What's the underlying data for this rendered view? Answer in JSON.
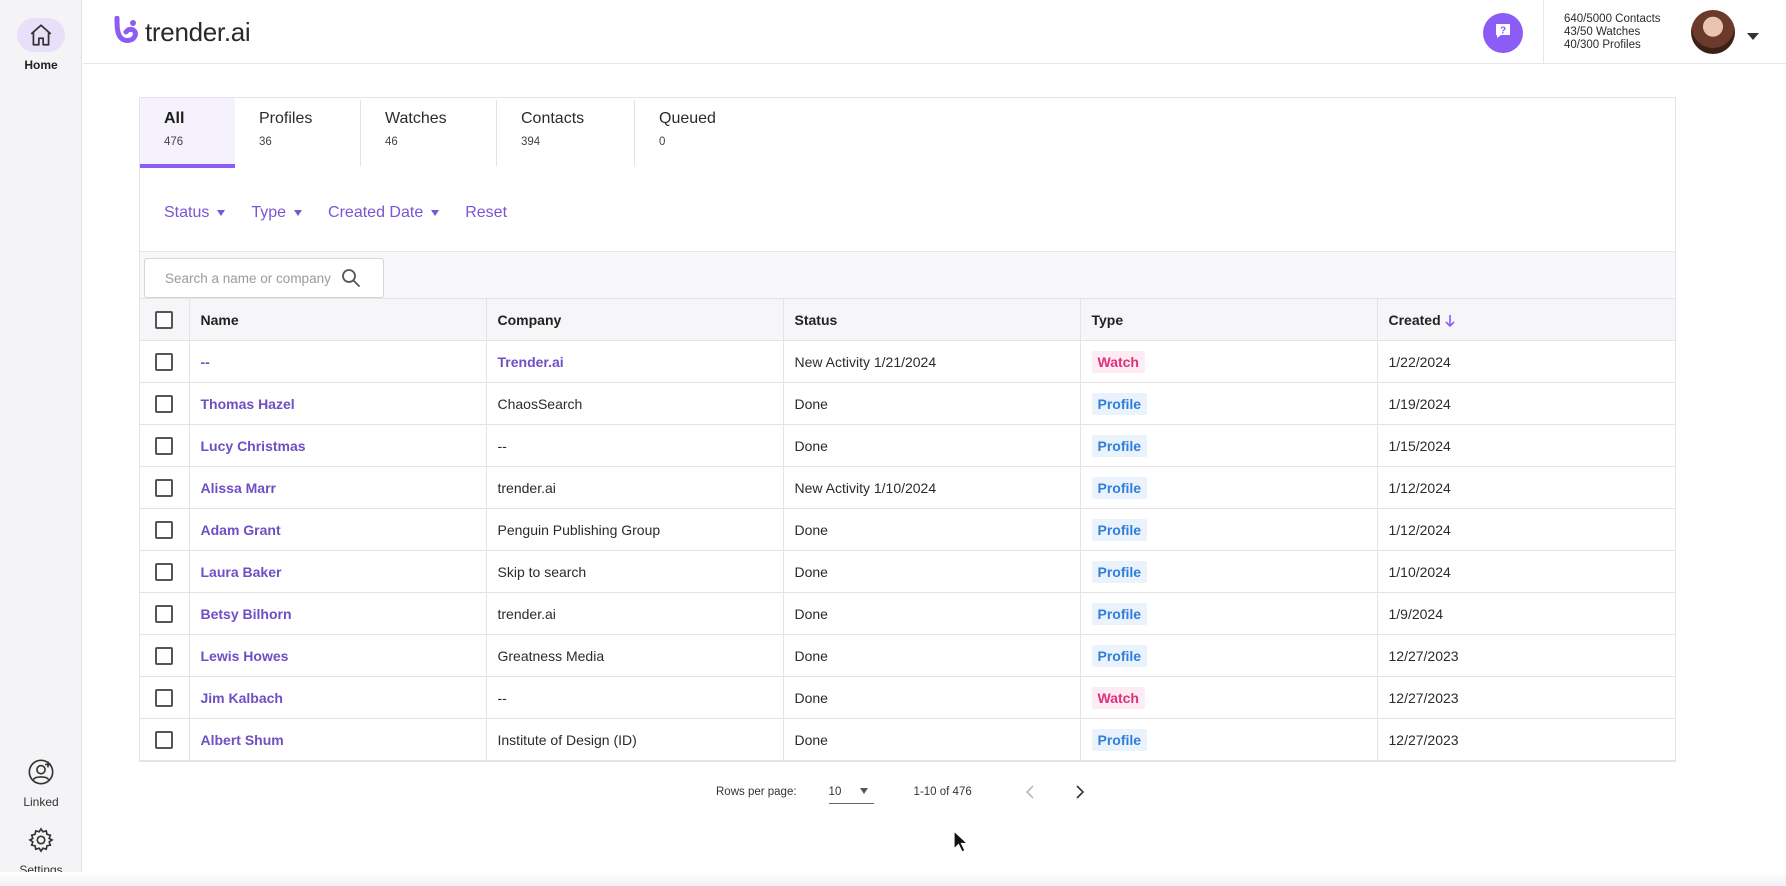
{
  "sidebar": {
    "home_label": "Home",
    "linked_label": "Linked",
    "settings_label": "Settings"
  },
  "header": {
    "logo_text": "trender.ai",
    "quota": {
      "contacts": "640/5000 Contacts",
      "watches": "43/50 Watches",
      "profiles": "40/300 Profiles"
    }
  },
  "tabs": [
    {
      "label": "All",
      "count": "476"
    },
    {
      "label": "Profiles",
      "count": "36"
    },
    {
      "label": "Watches",
      "count": "46"
    },
    {
      "label": "Contacts",
      "count": "394"
    },
    {
      "label": "Queued",
      "count": "0"
    }
  ],
  "filters": {
    "status": "Status",
    "type": "Type",
    "created_date": "Created Date",
    "reset": "Reset"
  },
  "search": {
    "placeholder": "Search a name or company",
    "value": ""
  },
  "table": {
    "headers": {
      "name": "Name",
      "company": "Company",
      "status": "Status",
      "type": "Type",
      "created": "Created"
    },
    "rows": [
      {
        "name": "--",
        "company": "Trender.ai",
        "status": "New Activity 1/21/2024",
        "type": "Watch",
        "created": "1/22/2024"
      },
      {
        "name": "Thomas Hazel",
        "company": "ChaosSearch",
        "status": "Done",
        "type": "Profile",
        "created": "1/19/2024"
      },
      {
        "name": "Lucy Christmas",
        "company": "--",
        "status": "Done",
        "type": "Profile",
        "created": "1/15/2024"
      },
      {
        "name": "Alissa Marr",
        "company": "trender.ai",
        "status": "New Activity 1/10/2024",
        "type": "Profile",
        "created": "1/12/2024"
      },
      {
        "name": "Adam Grant",
        "company": "Penguin Publishing Group",
        "status": "Done",
        "type": "Profile",
        "created": "1/12/2024"
      },
      {
        "name": "Laura Baker",
        "company": "Skip to search",
        "status": "Done",
        "type": "Profile",
        "created": "1/10/2024"
      },
      {
        "name": "Betsy Bilhorn",
        "company": "trender.ai",
        "status": "Done",
        "type": "Profile",
        "created": "1/9/2024"
      },
      {
        "name": "Lewis Howes",
        "company": "Greatness Media",
        "status": "Done",
        "type": "Profile",
        "created": "12/27/2023"
      },
      {
        "name": "Jim Kalbach",
        "company": "--",
        "status": "Done",
        "type": "Watch",
        "created": "12/27/2023"
      },
      {
        "name": "Albert Shum",
        "company": "Institute of Design (ID)",
        "status": "Done",
        "type": "Profile",
        "created": "12/27/2023"
      }
    ]
  },
  "pagination": {
    "rows_per_page_label": "Rows per page:",
    "rows_per_page_value": "10",
    "range": "1-10 of 476"
  },
  "colors": {
    "accent": "#8b5cf6",
    "link": "#6e4fc4",
    "watch_badge": "#e0307a",
    "profile_badge": "#2f7fd9"
  },
  "icons": [
    "home-icon",
    "linked-account-icon",
    "gear-icon",
    "help-icon",
    "search-icon",
    "sort-arrow-down-icon",
    "chevron-left-icon",
    "chevron-right-icon",
    "caret-down-icon"
  ]
}
